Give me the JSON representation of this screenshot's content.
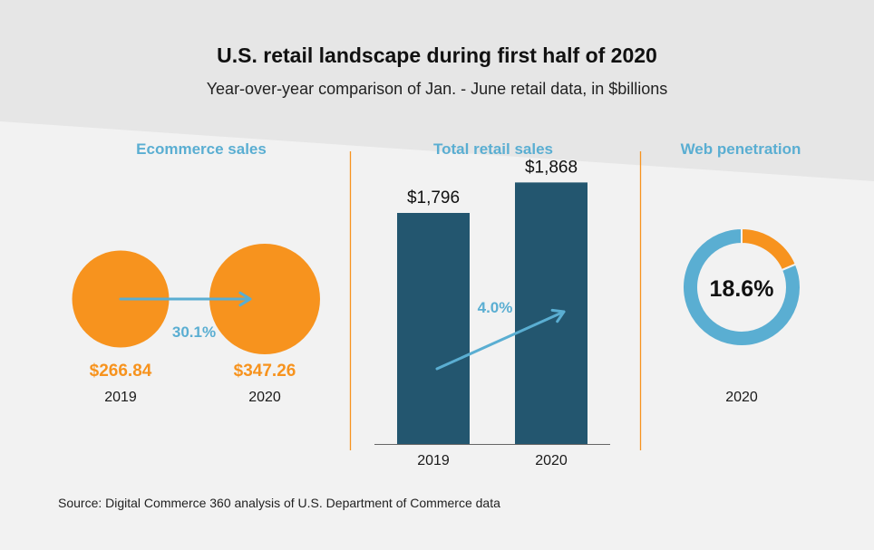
{
  "title": "U.S. retail landscape during first half of 2020",
  "subtitle": "Year-over-year comparison of Jan. - June retail data, in $billions",
  "source": "Source: Digital Commerce 360 analysis of U.S. Department of Commerce data",
  "colors": {
    "orange": "#f7931e",
    "navy": "#23566f",
    "light_blue": "#5aaed2",
    "divider": "#f7931e",
    "background": "#f2f2f2",
    "band": "#e6e6e6"
  },
  "chart_data": [
    {
      "type": "bubble",
      "title": "Ecommerce sales",
      "categories": [
        "2019",
        "2020"
      ],
      "values": [
        266.84,
        347.26
      ],
      "value_labels": [
        "$266.84",
        "$347.26"
      ],
      "annotation": "30.1%"
    },
    {
      "type": "bar",
      "title": "Total retail sales",
      "categories": [
        "2019",
        "2020"
      ],
      "values": [
        1796,
        1868
      ],
      "value_labels": [
        "$1,796",
        "$1,868"
      ],
      "annotation": "4.0%",
      "baseline_hint": 1250
    },
    {
      "type": "pie",
      "title": "Web penetration",
      "categories": [
        "2020"
      ],
      "values": [
        18.6
      ],
      "center_label": "18.6%",
      "year_label": "2020"
    }
  ]
}
